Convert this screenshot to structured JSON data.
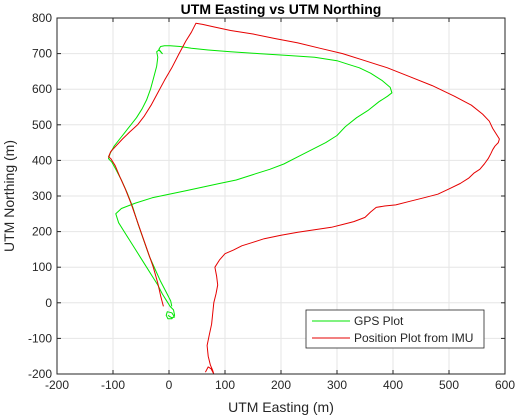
{
  "chart_data": {
    "type": "line",
    "title": "UTM Easting vs UTM Northing",
    "xlabel": "UTM Easting (m)",
    "ylabel": "UTM Northing (m)",
    "xlim": [
      -200,
      600
    ],
    "ylim": [
      -200,
      800
    ],
    "xticks": [
      -200,
      -100,
      0,
      100,
      200,
      300,
      400,
      500,
      600
    ],
    "yticks": [
      -200,
      -100,
      0,
      100,
      200,
      300,
      400,
      500,
      600,
      700,
      800
    ],
    "grid": true,
    "legend_position": "bottom-right",
    "colors": {
      "gps": "#00e600",
      "imu": "#e60000",
      "grid": "#e6e6e6",
      "axis": "#262626"
    },
    "series": [
      {
        "name": "GPS Plot",
        "color": "#00e600",
        "x": [
          5,
          3,
          -5,
          -15,
          -25,
          -35,
          -45,
          -55,
          -65,
          -75,
          -85,
          -95,
          -102,
          -108,
          -105,
          -98,
          -88,
          -78,
          -68,
          -58,
          -48,
          -40,
          -33,
          -27,
          -22,
          -20,
          -22,
          -18,
          -12,
          -18,
          -15,
          -8,
          2,
          20,
          40,
          70,
          110,
          160,
          210,
          260,
          300,
          320,
          340,
          360,
          380,
          395,
          398,
          390,
          375,
          355,
          335,
          315,
          300,
          280,
          255,
          230,
          205,
          180,
          150,
          120,
          90,
          60,
          30,
          0,
          -30,
          -60,
          -85,
          -95,
          -90,
          -80,
          -70,
          -60,
          -50,
          -40,
          -30,
          -20,
          -12,
          -6,
          -2,
          2,
          8,
          10,
          5,
          -2,
          -5,
          -3,
          5,
          10,
          5,
          -2
        ],
        "y": [
          -10,
          5,
          30,
          60,
          95,
          130,
          175,
          220,
          270,
          310,
          345,
          375,
          395,
          405,
          420,
          440,
          460,
          480,
          500,
          520,
          545,
          570,
          600,
          635,
          665,
          690,
          705,
          710,
          700,
          712,
          720,
          722,
          722,
          720,
          715,
          710,
          705,
          700,
          695,
          690,
          680,
          670,
          660,
          645,
          625,
          605,
          590,
          580,
          565,
          540,
          520,
          495,
          470,
          450,
          430,
          410,
          390,
          375,
          360,
          345,
          335,
          325,
          315,
          305,
          295,
          280,
          265,
          250,
          225,
          200,
          175,
          150,
          125,
          100,
          75,
          50,
          25,
          10,
          0,
          -10,
          -20,
          -35,
          -45,
          -45,
          -35,
          -25,
          -28,
          -40,
          -42,
          -35
        ]
      },
      {
        "name": "Position Plot from IMU",
        "color": "#e60000",
        "x": [
          -10,
          -15,
          -20,
          -28,
          -38,
          -48,
          -58,
          -68,
          -78,
          -88,
          -96,
          -104,
          -108,
          -104,
          -95,
          -83,
          -70,
          -56,
          -44,
          -32,
          -20,
          -8,
          5,
          18,
          30,
          40,
          48,
          60,
          80,
          110,
          150,
          190,
          230,
          270,
          310,
          350,
          390,
          430,
          470,
          510,
          540,
          560,
          572,
          578,
          582,
          586,
          590,
          588,
          582,
          578,
          575,
          570,
          563,
          555,
          545,
          535,
          520,
          500,
          480,
          455,
          430,
          405,
          385,
          370,
          360,
          350,
          330,
          310,
          290,
          260,
          230,
          200,
          170,
          150,
          130,
          115,
          100,
          90,
          82,
          85,
          87,
          84,
          80,
          78,
          76,
          72,
          68,
          70,
          74,
          78,
          80,
          75,
          70,
          65
        ],
        "y": [
          -10,
          20,
          55,
          100,
          145,
          190,
          235,
          280,
          320,
          355,
          385,
          405,
          410,
          425,
          440,
          460,
          480,
          500,
          525,
          555,
          590,
          625,
          660,
          700,
          735,
          760,
          785,
          782,
          775,
          765,
          755,
          742,
          730,
          715,
          700,
          680,
          660,
          635,
          610,
          580,
          555,
          530,
          510,
          490,
          480,
          470,
          460,
          450,
          440,
          430,
          420,
          405,
          390,
          375,
          365,
          350,
          335,
          320,
          305,
          295,
          285,
          275,
          272,
          268,
          255,
          240,
          228,
          220,
          212,
          205,
          198,
          190,
          180,
          170,
          160,
          148,
          138,
          120,
          100,
          75,
          50,
          25,
          0,
          -30,
          -60,
          -90,
          -120,
          -150,
          -175,
          -190,
          -200,
          -185,
          -180,
          -195
        ]
      }
    ]
  }
}
